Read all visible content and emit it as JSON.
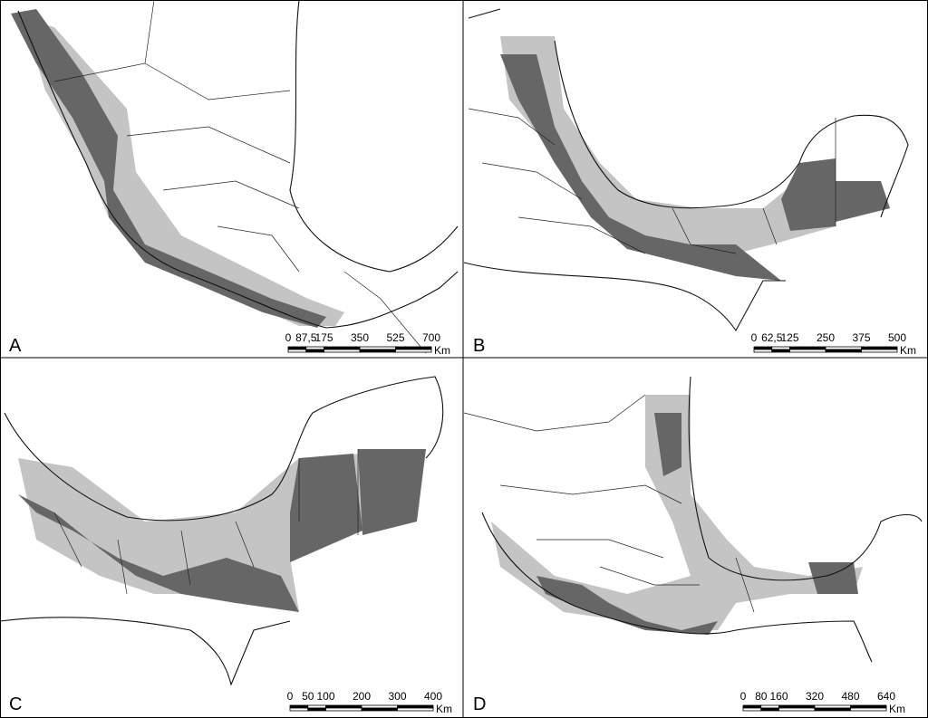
{
  "panels": [
    {
      "label": "A",
      "scale": {
        "ticks": [
          "0",
          "87,5",
          "175",
          "350",
          "525",
          "700"
        ],
        "unit": "Km"
      }
    },
    {
      "label": "B",
      "scale": {
        "ticks": [
          "0",
          "62,5",
          "125",
          "250",
          "375",
          "500"
        ],
        "unit": "Km"
      }
    },
    {
      "label": "C",
      "scale": {
        "ticks": [
          "0",
          "50",
          "100",
          "200",
          "300",
          "400"
        ],
        "unit": "Km"
      }
    },
    {
      "label": "D",
      "scale": {
        "ticks": [
          "0",
          "80",
          "160",
          "320",
          "480",
          "640"
        ],
        "unit": "Km"
      }
    }
  ]
}
